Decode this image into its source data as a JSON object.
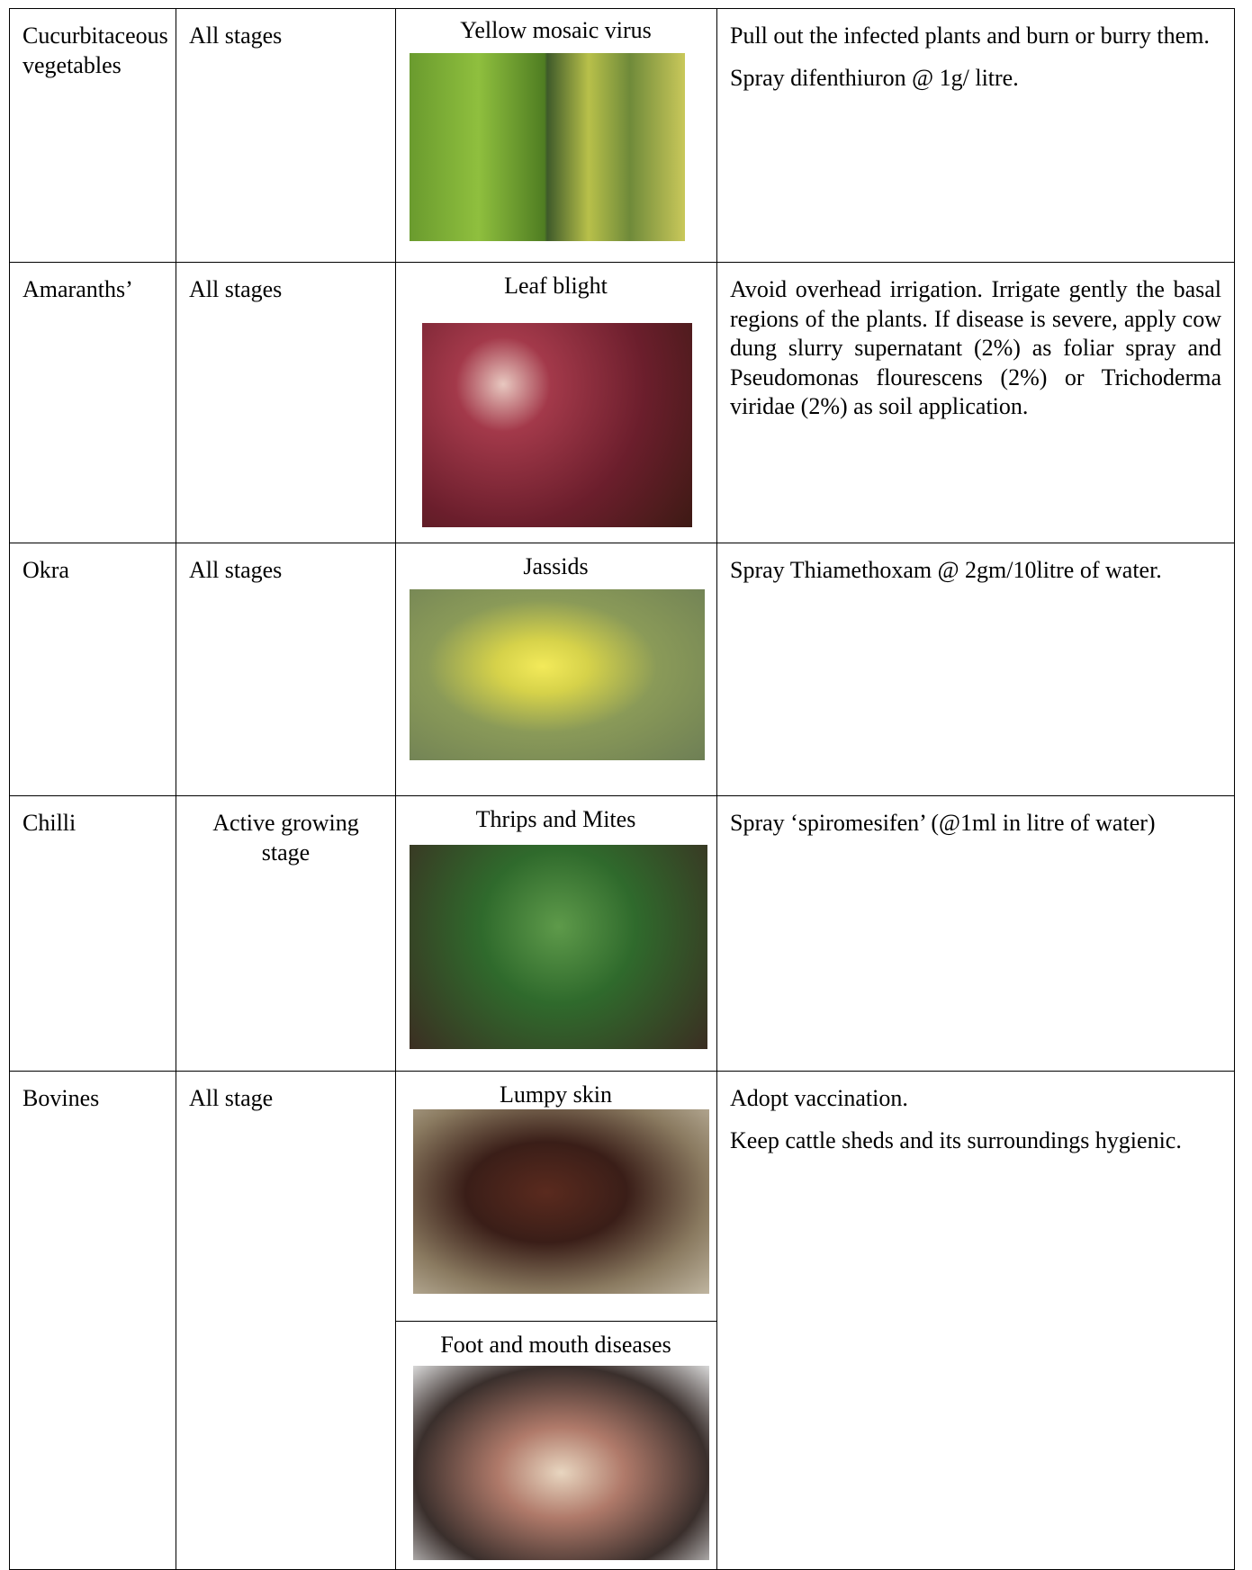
{
  "table": {
    "rows": [
      {
        "crop": "Cucurbitaceous vegetables",
        "stage": "All stages",
        "problems": [
          "Yellow mosaic virus"
        ],
        "management": [
          "Pull out the infected plants and burn or burry them.",
          "Spray difenthiuron @ 1g/ litre."
        ]
      },
      {
        "crop": "Amaranths’",
        "stage": "All stages",
        "problems": [
          "Leaf blight"
        ],
        "management": [
          "Avoid overhead irrigation. Irrigate gently the basal regions of the plants. If disease is severe, apply cow dung slurry supernatant (2%) as foliar spray and Pseudomonas flourescens (2%) or Trichoderma viridae (2%) as soil application."
        ]
      },
      {
        "crop": "Okra",
        "stage": "All stages",
        "problems": [
          "Jassids"
        ],
        "management": [
          "Spray Thiamethoxam @ 2gm/10litre of water."
        ]
      },
      {
        "crop": "Chilli",
        "stage": "Active growing stage",
        "problems": [
          "Thrips and Mites"
        ],
        "management": [
          "Spray ‘spiromesifen’ (@1ml in litre of water)"
        ]
      },
      {
        "crop": "Bovines",
        "stage": "All stage",
        "problems": [
          "Lumpy skin",
          "Foot and mouth diseases"
        ],
        "management": [
          "Adopt vaccination.",
          "Keep cattle sheds and its surroundings hygienic."
        ]
      }
    ]
  }
}
